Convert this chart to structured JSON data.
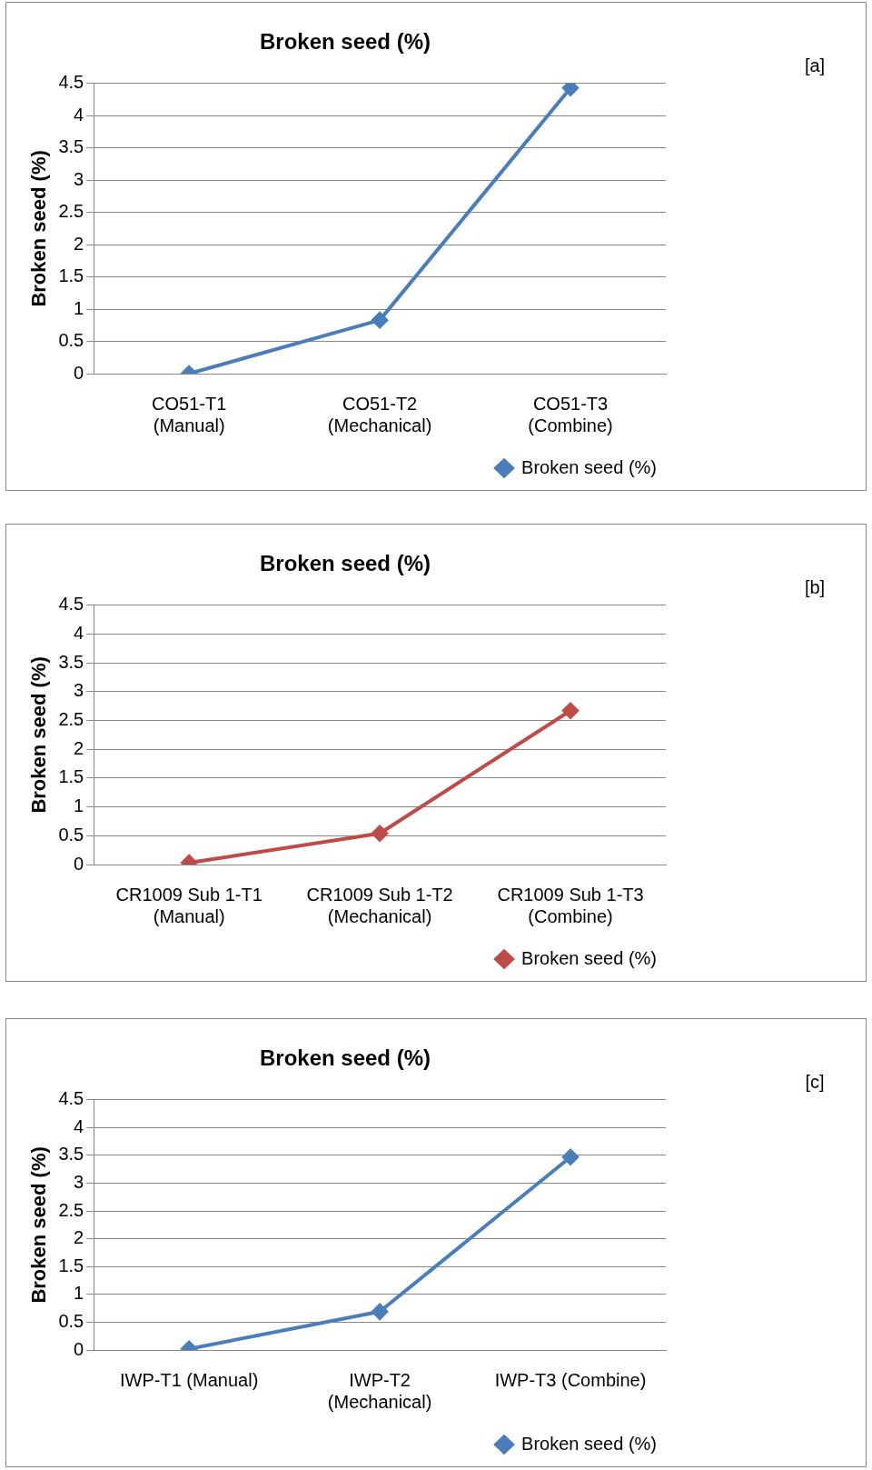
{
  "chart_data": [
    {
      "type": "line",
      "title": "Broken seed (%)",
      "ylabel": "Broken seed (%)",
      "categories": [
        "CO51-T1\n(Manual)",
        "CO51-T2\n(Mechanical)",
        "CO51-T3\n(Combine)"
      ],
      "series": [
        {
          "name": "Broken seed (%)",
          "color": "#4a7ebb",
          "values": [
            0,
            0.83,
            4.43
          ]
        }
      ],
      "ylim": [
        0,
        4.5
      ],
      "yticks": [
        0,
        0.5,
        1,
        1.5,
        2,
        2.5,
        3,
        3.5,
        4,
        4.5
      ],
      "grid": "y",
      "legend": "bottom right",
      "marker": "diamond",
      "line_style": "solid",
      "annotations": [
        "[a]"
      ]
    },
    {
      "type": "line",
      "title": "Broken seed (%)",
      "ylabel": "Broken seed (%)",
      "categories": [
        "CR1009 Sub 1-T1\n(Manual)",
        "CR1009 Sub 1-T2\n(Mechanical)",
        "CR1009 Sub 1-T3\n(Combine)"
      ],
      "series": [
        {
          "name": "Broken seed (%)",
          "color": "#be4b48",
          "values": [
            0.03,
            0.54,
            2.67
          ]
        }
      ],
      "ylim": [
        0,
        4.5
      ],
      "yticks": [
        0,
        0.5,
        1,
        1.5,
        2,
        2.5,
        3,
        3.5,
        4,
        4.5
      ],
      "grid": "y",
      "legend": "bottom right",
      "marker": "diamond",
      "line_style": "solid",
      "annotations": [
        "[b]"
      ]
    },
    {
      "type": "line",
      "title": "Broken seed (%)",
      "ylabel": "Broken seed (%)",
      "categories": [
        "IWP-T1 (Manual)",
        "IWP-T2\n(Mechanical)",
        "IWP-T3 (Combine)"
      ],
      "series": [
        {
          "name": "Broken seed (%)",
          "color": "#4a7ebb",
          "values": [
            0.02,
            0.69,
            3.47
          ]
        }
      ],
      "ylim": [
        0,
        4.5
      ],
      "yticks": [
        0,
        0.5,
        1,
        1.5,
        2,
        2.5,
        3,
        3.5,
        4,
        4.5
      ],
      "grid": "y",
      "legend": "bottom right",
      "marker": "diamond",
      "line_style": "solid",
      "annotations": [
        "[c]"
      ]
    }
  ]
}
